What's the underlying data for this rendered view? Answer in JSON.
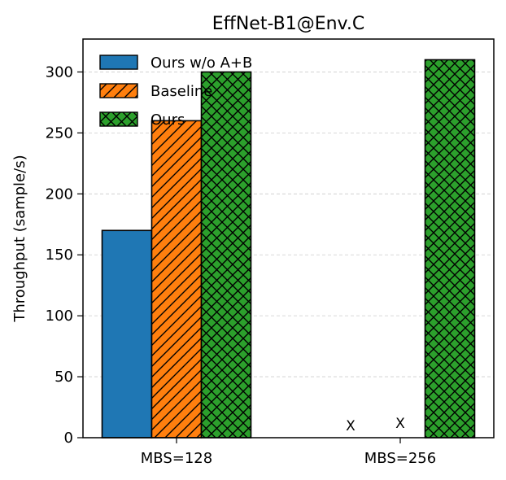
{
  "chart_data": {
    "type": "bar",
    "title": "EffNet-B1@Env.C",
    "xlabel": "",
    "ylabel": "Throughput (sample/s)",
    "categories": [
      "MBS=128",
      "MBS=256"
    ],
    "ylim": [
      0,
      327
    ],
    "yticks": [
      0,
      50,
      100,
      150,
      200,
      250,
      300
    ],
    "grid": true,
    "legend_position": "top-left",
    "series": [
      {
        "name": "Ours w/o A+B",
        "values": [
          170,
          null
        ],
        "color": "#1f77b4",
        "hatch": "none",
        "missing_marker": [
          "",
          "X"
        ]
      },
      {
        "name": "Baseline",
        "values": [
          260,
          null
        ],
        "color": "#ff7f0e",
        "hatch": "diagonal",
        "missing_marker": [
          "",
          "X"
        ]
      },
      {
        "name": "Ours",
        "values": [
          300,
          310
        ],
        "color": "#2ca02c",
        "hatch": "crosshatch",
        "missing_marker": [
          "",
          ""
        ]
      }
    ]
  }
}
